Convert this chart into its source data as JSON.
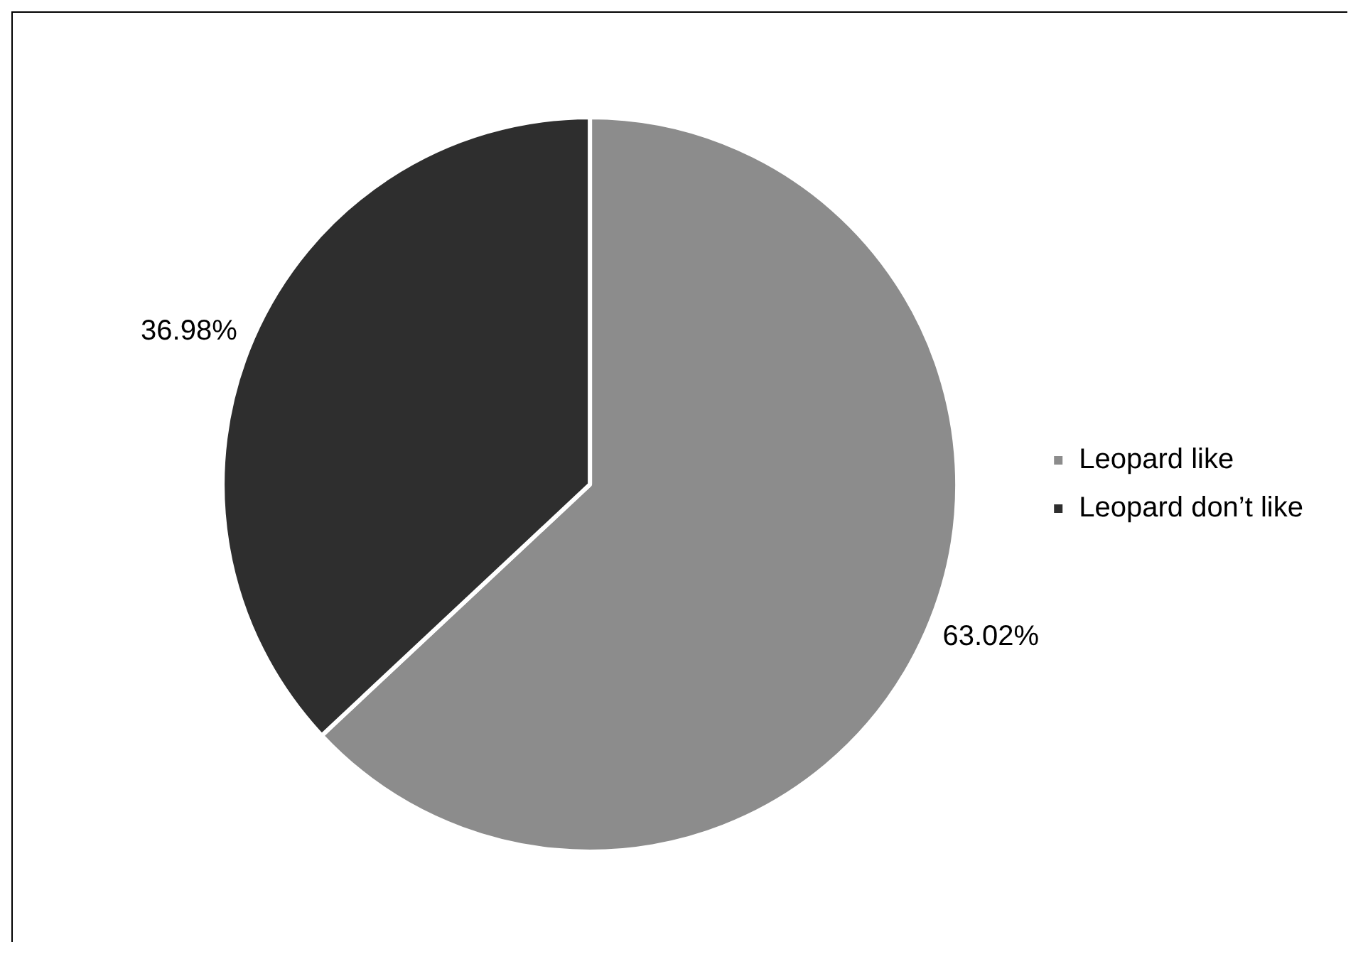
{
  "chart_data": {
    "type": "pie",
    "categories": [
      "Leopard like",
      "Leopard don’t like"
    ],
    "values": [
      63.02,
      36.98
    ],
    "colors": [
      "#8c8c8c",
      "#2e2e2e"
    ],
    "value_labels": [
      "63.02%",
      "36.98%"
    ],
    "legend": "right"
  }
}
